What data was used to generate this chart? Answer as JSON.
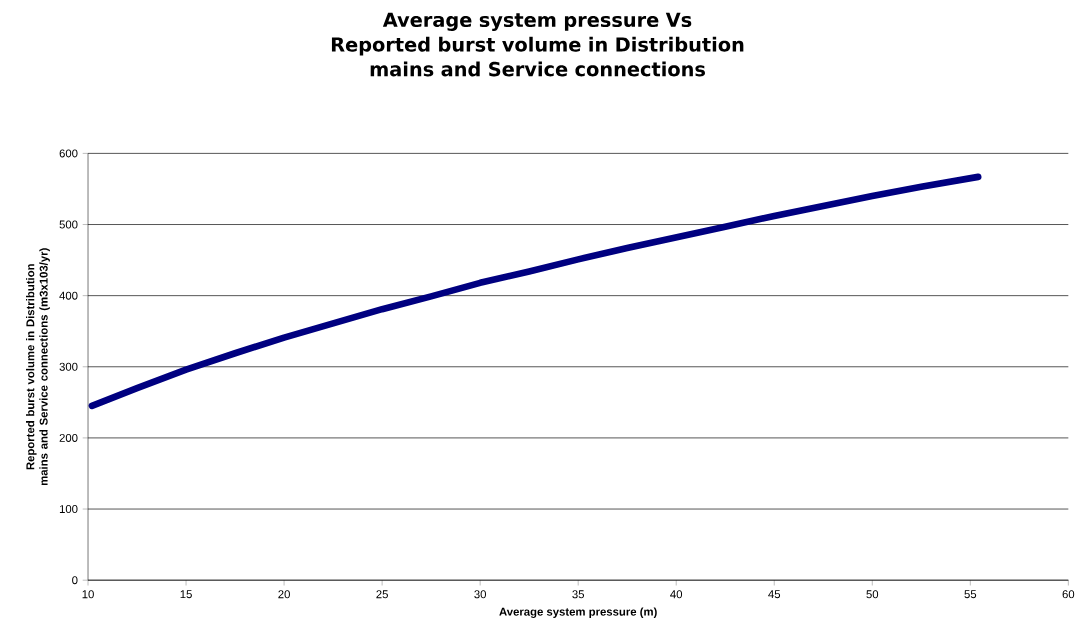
{
  "chart_data": {
    "type": "line",
    "title": "Average system pressure Vs Reported burst volume in Distribution mains and Service connections",
    "xlabel": "Average system pressure (m)",
    "ylabel": "Reported burst volume in Distribution mains and Service connections  (m3x103/yr)",
    "x": [
      10.2,
      12.5,
      15,
      17.5,
      20,
      22.5,
      25,
      27.5,
      30,
      32.5,
      35,
      37.5,
      40,
      42.5,
      45,
      47.5,
      50,
      52.5,
      55.4
    ],
    "series": [
      {
        "color": "#000080",
        "values": [
          245,
          270,
          296,
          319,
          341,
          361,
          381,
          399,
          418,
          434,
          451,
          467,
          482,
          497,
          512,
          526,
          540,
          553,
          567
        ]
      }
    ],
    "xlim": [
      10,
      60
    ],
    "xticks": [
      10,
      15,
      20,
      25,
      30,
      35,
      40,
      45,
      50,
      55,
      60
    ],
    "ylim": [
      0,
      600
    ],
    "yticks": [
      0,
      100,
      200,
      300,
      400,
      500,
      600
    ],
    "grid": "y",
    "marker": "none",
    "line_style": "solid"
  }
}
